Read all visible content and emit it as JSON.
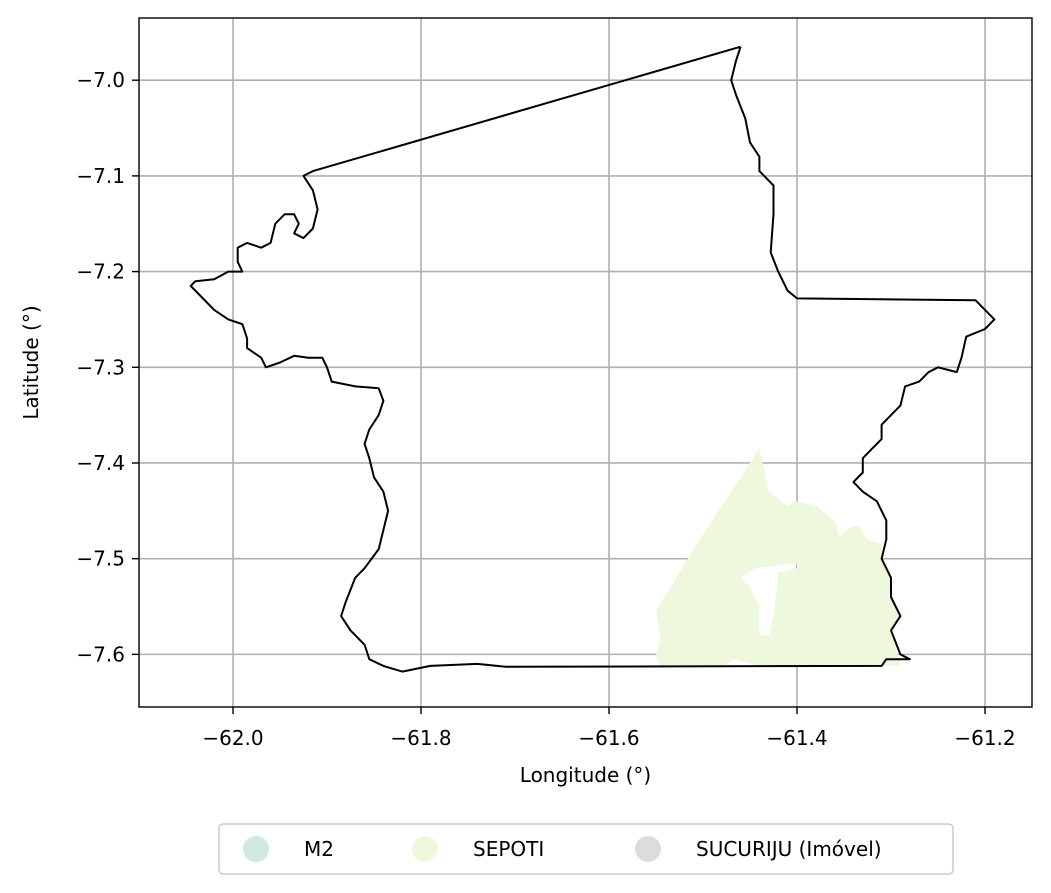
{
  "chart_data": {
    "type": "map",
    "xlabel": "Longitude (°)",
    "ylabel": "Latitude (°)",
    "xlim": [
      -62.1,
      -61.15
    ],
    "ylim": [
      -7.655,
      -6.935
    ],
    "xticks": [
      -62.0,
      -61.8,
      -61.6,
      -61.4,
      -61.2
    ],
    "xtick_labels": [
      "−62.0",
      "−61.8",
      "−61.6",
      "−61.4",
      "−61.2"
    ],
    "yticks": [
      -7.0,
      -7.1,
      -7.2,
      -7.3,
      -7.4,
      -7.5,
      -7.6
    ],
    "ytick_labels": [
      "−7.0",
      "−7.1",
      "−7.2",
      "−7.3",
      "−7.4",
      "−7.5",
      "−7.6"
    ],
    "grid": true,
    "legend_position": "bottom-center",
    "legend": [
      {
        "label": "M2",
        "color": "#cfeadf"
      },
      {
        "label": "SEPOTI",
        "color": "#eef8dc"
      },
      {
        "label": "SUCURIJU (Imóvel)",
        "color": "#dcdcdc"
      }
    ],
    "boundary": [
      [
        -61.46,
        -6.965
      ],
      [
        -61.465,
        -6.98
      ],
      [
        -61.47,
        -7.0
      ],
      [
        -61.465,
        -7.015
      ],
      [
        -61.455,
        -7.04
      ],
      [
        -61.45,
        -7.065
      ],
      [
        -61.44,
        -7.08
      ],
      [
        -61.44,
        -7.095
      ],
      [
        -61.425,
        -7.11
      ],
      [
        -61.425,
        -7.14
      ],
      [
        -61.428,
        -7.18
      ],
      [
        -61.42,
        -7.2
      ],
      [
        -61.41,
        -7.22
      ],
      [
        -61.4,
        -7.228
      ],
      [
        -61.21,
        -7.23
      ],
      [
        -61.2,
        -7.24
      ],
      [
        -61.19,
        -7.25
      ],
      [
        -61.2,
        -7.26
      ],
      [
        -61.22,
        -7.268
      ],
      [
        -61.225,
        -7.29
      ],
      [
        -61.23,
        -7.305
      ],
      [
        -61.25,
        -7.3
      ],
      [
        -61.26,
        -7.305
      ],
      [
        -61.27,
        -7.315
      ],
      [
        -61.285,
        -7.32
      ],
      [
        -61.29,
        -7.34
      ],
      [
        -61.3,
        -7.35
      ],
      [
        -61.31,
        -7.36
      ],
      [
        -61.31,
        -7.375
      ],
      [
        -61.32,
        -7.385
      ],
      [
        -61.33,
        -7.395
      ],
      [
        -61.33,
        -7.41
      ],
      [
        -61.34,
        -7.42
      ],
      [
        -61.33,
        -7.43
      ],
      [
        -61.315,
        -7.44
      ],
      [
        -61.305,
        -7.46
      ],
      [
        -61.305,
        -7.48
      ],
      [
        -61.31,
        -7.5
      ],
      [
        -61.3,
        -7.52
      ],
      [
        -61.3,
        -7.54
      ],
      [
        -61.29,
        -7.56
      ],
      [
        -61.3,
        -7.575
      ],
      [
        -61.29,
        -7.6
      ],
      [
        -61.28,
        -7.605
      ],
      [
        -61.305,
        -7.605
      ],
      [
        -61.31,
        -7.612
      ],
      [
        -61.71,
        -7.613
      ],
      [
        -61.74,
        -7.61
      ],
      [
        -61.79,
        -7.612
      ],
      [
        -61.82,
        -7.618
      ],
      [
        -61.84,
        -7.612
      ],
      [
        -61.855,
        -7.605
      ],
      [
        -61.86,
        -7.59
      ],
      [
        -61.875,
        -7.575
      ],
      [
        -61.885,
        -7.56
      ],
      [
        -61.88,
        -7.545
      ],
      [
        -61.87,
        -7.52
      ],
      [
        -61.86,
        -7.51
      ],
      [
        -61.845,
        -7.49
      ],
      [
        -61.84,
        -7.47
      ],
      [
        -61.835,
        -7.45
      ],
      [
        -61.84,
        -7.43
      ],
      [
        -61.85,
        -7.415
      ],
      [
        -61.855,
        -7.395
      ],
      [
        -61.86,
        -7.38
      ],
      [
        -61.855,
        -7.365
      ],
      [
        -61.845,
        -7.35
      ],
      [
        -61.84,
        -7.335
      ],
      [
        -61.845,
        -7.322
      ],
      [
        -61.87,
        -7.32
      ],
      [
        -61.895,
        -7.315
      ],
      [
        -61.9,
        -7.3
      ],
      [
        -61.905,
        -7.29
      ],
      [
        -61.92,
        -7.29
      ],
      [
        -61.935,
        -7.288
      ],
      [
        -61.95,
        -7.295
      ],
      [
        -61.965,
        -7.3
      ],
      [
        -61.97,
        -7.29
      ],
      [
        -61.985,
        -7.28
      ],
      [
        -61.985,
        -7.27
      ],
      [
        -61.99,
        -7.255
      ],
      [
        -62.005,
        -7.25
      ],
      [
        -62.02,
        -7.24
      ],
      [
        -62.035,
        -7.225
      ],
      [
        -62.045,
        -7.215
      ],
      [
        -62.04,
        -7.21
      ],
      [
        -62.02,
        -7.208
      ],
      [
        -62.005,
        -7.2
      ],
      [
        -61.99,
        -7.2
      ],
      [
        -61.995,
        -7.19
      ],
      [
        -61.995,
        -7.175
      ],
      [
        -61.985,
        -7.17
      ],
      [
        -61.97,
        -7.175
      ],
      [
        -61.96,
        -7.17
      ],
      [
        -61.955,
        -7.15
      ],
      [
        -61.945,
        -7.14
      ],
      [
        -61.935,
        -7.14
      ],
      [
        -61.93,
        -7.15
      ],
      [
        -61.935,
        -7.16
      ],
      [
        -61.925,
        -7.165
      ],
      [
        -61.915,
        -7.155
      ],
      [
        -61.91,
        -7.135
      ],
      [
        -61.915,
        -7.115
      ],
      [
        -61.925,
        -7.1
      ],
      [
        -61.915,
        -7.095
      ],
      [
        -61.46,
        -6.965
      ]
    ],
    "regions": [
      {
        "name": "SEPOTI",
        "color": "#eef8dc",
        "polygons": [
          [
            [
              -61.44,
              -7.385
            ],
            [
              -61.45,
              -7.4
            ],
            [
              -61.47,
              -7.43
            ],
            [
              -61.51,
              -7.49
            ],
            [
              -61.55,
              -7.555
            ],
            [
              -61.545,
              -7.58
            ],
            [
              -61.55,
              -7.6
            ],
            [
              -61.545,
              -7.613
            ],
            [
              -61.48,
              -7.612
            ],
            [
              -61.465,
              -7.605
            ],
            [
              -61.45,
              -7.61
            ],
            [
              -61.43,
              -7.613
            ],
            [
              -61.29,
              -7.612
            ],
            [
              -61.3,
              -7.575
            ],
            [
              -61.29,
              -7.56
            ],
            [
              -61.3,
              -7.54
            ],
            [
              -61.3,
              -7.52
            ],
            [
              -61.31,
              -7.5
            ],
            [
              -61.31,
              -7.485
            ],
            [
              -61.325,
              -7.48
            ],
            [
              -61.335,
              -7.465
            ],
            [
              -61.345,
              -7.468
            ],
            [
              -61.355,
              -7.478
            ],
            [
              -61.36,
              -7.46
            ],
            [
              -61.38,
              -7.445
            ],
            [
              -61.4,
              -7.44
            ],
            [
              -61.41,
              -7.445
            ],
            [
              -61.43,
              -7.43
            ],
            [
              -61.44,
              -7.385
            ]
          ]
        ],
        "holes": [
          [
            [
              -61.4,
              -7.51
            ],
            [
              -61.42,
              -7.515
            ],
            [
              -61.425,
              -7.56
            ],
            [
              -61.43,
              -7.58
            ],
            [
              -61.44,
              -7.58
            ],
            [
              -61.44,
              -7.55
            ],
            [
              -61.45,
              -7.53
            ],
            [
              -61.46,
              -7.52
            ],
            [
              -61.445,
              -7.51
            ],
            [
              -61.4,
              -7.505
            ]
          ]
        ]
      }
    ]
  }
}
